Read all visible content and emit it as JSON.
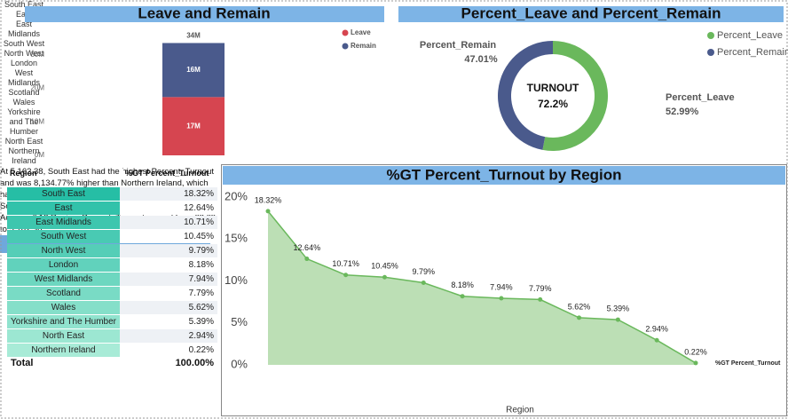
{
  "chart_data": [
    {
      "type": "bar",
      "title": "Leave and Remain",
      "categories": [
        null
      ],
      "series": [
        {
          "name": "Leave",
          "color": "#d64550",
          "values": [
            17.41
          ],
          "value_labels": [
            "17M"
          ]
        },
        {
          "name": "Remain",
          "color": "#4a5a8c",
          "values": [
            16.14
          ],
          "value_labels": [
            "16M"
          ]
        }
      ],
      "totals": [
        33.55
      ],
      "total_labels": [
        "34M"
      ],
      "ylim": [
        0,
        35
      ],
      "yticks": [
        {
          "value": 0,
          "label": "0M"
        },
        {
          "value": 10,
          "label": "10M"
        },
        {
          "value": 20,
          "label": "20M"
        },
        {
          "value": 30,
          "label": "30M"
        }
      ],
      "grid": false,
      "legend": "top-right"
    },
    {
      "type": "pie",
      "title": "Percent_Leave and Percent_Remain",
      "categories": [
        "Percent_Leave",
        "Percent_Remain"
      ],
      "values": [
        52.99,
        47.01
      ],
      "value_labels": [
        "52.99%",
        "47.01%"
      ],
      "colors": [
        "#6ab85c",
        "#4a5a8c"
      ],
      "donut": true,
      "center_text": [
        "TURNOUT",
        "72.2%"
      ],
      "legend": "top-right"
    },
    {
      "type": "area",
      "title": "%GT Percent_Turnout by Region",
      "x_label": "Region",
      "categories": [
        "South East",
        "East",
        "East Midlands",
        "South West",
        "North West",
        "London",
        "West Midlands",
        "Scotland",
        "Wales",
        "Yorkshire and The Humber",
        "North East",
        "Northern Ireland"
      ],
      "series": [
        {
          "name": "%GT Percent_Turnout",
          "color": "#6ab85c",
          "values": [
            18.32,
            12.64,
            10.71,
            10.45,
            9.79,
            8.18,
            7.94,
            7.79,
            5.62,
            5.39,
            2.94,
            0.22
          ],
          "value_labels": [
            "18.32%",
            "12.64%",
            "10.71%",
            "10.45%",
            "9.79%",
            "8.18%",
            "7.94%",
            "7.79%",
            "5.62%",
            "5.39%",
            "2.94%",
            "0.22%"
          ]
        }
      ],
      "ylim": [
        0,
        20
      ],
      "yticks": [
        {
          "value": 0,
          "label": "0%"
        },
        {
          "value": 5,
          "label": "5%"
        },
        {
          "value": 10,
          "label": "10%"
        },
        {
          "value": 15,
          "label": "15%"
        },
        {
          "value": 20,
          "label": "20%"
        }
      ],
      "grid": false,
      "annotations": [
        "At 5,162.38, South East had the highest Percent_Turnout and was 8,134.77% higher than Northern Ireland, which had the lowest Percent_Turnout at 62.69.",
        "South East accounted for 18.32% of Percent_Turnout.",
        "Across all 12 Region, Percent_Turnout ranged from 62.69 to 5,162.38."
      ]
    }
  ],
  "table": {
    "columns": [
      "Region",
      "%GT Percent_Turnout"
    ],
    "rows": [
      [
        "South East",
        "18.32%"
      ],
      [
        "East",
        "12.64%"
      ],
      [
        "East Midlands",
        "10.71%"
      ],
      [
        "South West",
        "10.45%"
      ],
      [
        "North West",
        "9.79%"
      ],
      [
        "London",
        "8.18%"
      ],
      [
        "West Midlands",
        "7.94%"
      ],
      [
        "Scotland",
        "7.79%"
      ],
      [
        "Wales",
        "5.62%"
      ],
      [
        "Yorkshire and The Humber",
        "5.39%"
      ],
      [
        "North East",
        "2.94%"
      ],
      [
        "Northern Ireland",
        "0.22%"
      ]
    ],
    "total": [
      "Total",
      "100.00%"
    ]
  }
}
